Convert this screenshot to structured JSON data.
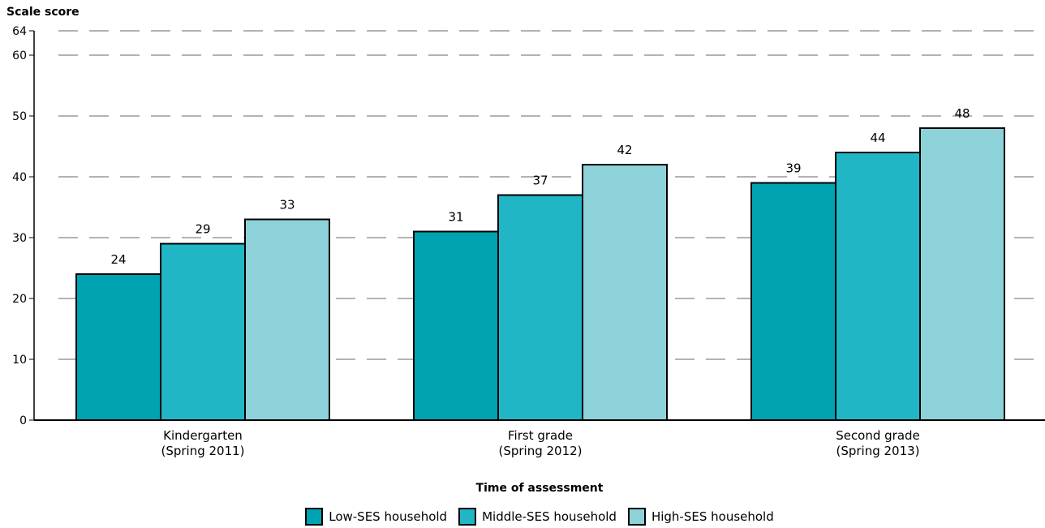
{
  "chart_data": {
    "type": "bar",
    "ylabel": "Scale score",
    "xlabel": "Time of assessment",
    "ylim": [
      0,
      64
    ],
    "yticks": [
      0,
      10,
      20,
      30,
      40,
      50,
      60,
      64
    ],
    "grid": true,
    "legend_position": "bottom",
    "categories": [
      [
        "Kindergarten",
        "(Spring 2011)"
      ],
      [
        "First grade",
        "(Spring 2012)"
      ],
      [
        "Second grade",
        "(Spring 2013)"
      ]
    ],
    "series": [
      {
        "name": "Low-SES household",
        "values": [
          24,
          31,
          39
        ],
        "color": "#00A3B2"
      },
      {
        "name": "Middle-SES household",
        "values": [
          29,
          37,
          44
        ],
        "color": "#21B6C6"
      },
      {
        "name": "High-SES household",
        "values": [
          33,
          42,
          48
        ],
        "color": "#8DD2D8"
      }
    ]
  }
}
